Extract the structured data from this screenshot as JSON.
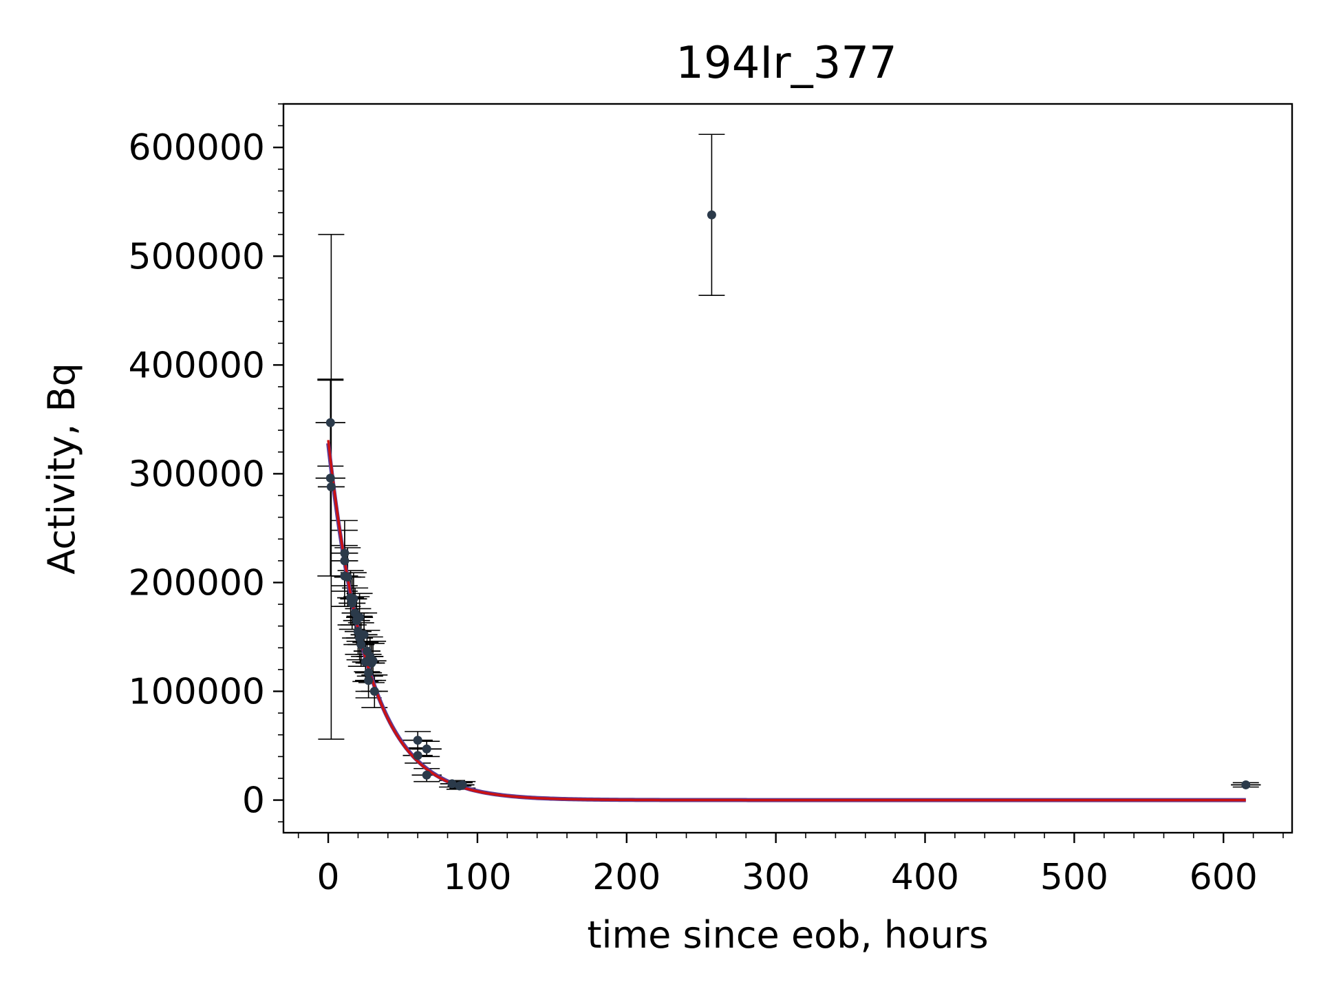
{
  "chart_data": {
    "type": "scatter",
    "title": "194Ir_377",
    "xlabel": "time since eob, hours",
    "ylabel": "Activity, Bq",
    "xlim": [
      -30,
      646
    ],
    "ylim": [
      -30000,
      640000
    ],
    "xticks": [
      0,
      100,
      200,
      300,
      400,
      500,
      600
    ],
    "xtick_labels": [
      "0",
      "100",
      "200",
      "300",
      "400",
      "500",
      "600"
    ],
    "yticks": [
      0,
      100000,
      200000,
      300000,
      400000,
      500000,
      600000
    ],
    "ytick_labels": [
      "0",
      "100000",
      "200000",
      "300000",
      "400000",
      "500000",
      "600000"
    ],
    "grid": false,
    "legend": "none",
    "colors": {
      "points": "#2b3a4a",
      "errorbars": "#000000",
      "fit_primary": "#cc1111",
      "fit_secondary": "#5a3d9a"
    },
    "points": [
      {
        "x": 1.5,
        "y": 347000,
        "xerr": 10,
        "yerr": 40000
      },
      {
        "x": 1.5,
        "y": 296000,
        "xerr": 10,
        "yerr": 90000
      },
      {
        "x": 2,
        "y": 288000,
        "xerr": 9,
        "yerr": 232000
      },
      {
        "x": 11,
        "y": 227000,
        "xerr": 9,
        "yerr": 30000
      },
      {
        "x": 11,
        "y": 220000,
        "xerr": 9,
        "yerr": 28000
      },
      {
        "x": 11,
        "y": 206000,
        "xerr": 9,
        "yerr": 28000
      },
      {
        "x": 13,
        "y": 205000,
        "xerr": 9,
        "yerr": 27000
      },
      {
        "x": 15,
        "y": 186000,
        "xerr": 9,
        "yerr": 25000
      },
      {
        "x": 16,
        "y": 181000,
        "xerr": 9,
        "yerr": 24000
      },
      {
        "x": 17,
        "y": 185000,
        "xerr": 9,
        "yerr": 24000
      },
      {
        "x": 18,
        "y": 172000,
        "xerr": 9,
        "yerr": 23000
      },
      {
        "x": 19,
        "y": 165000,
        "xerr": 9,
        "yerr": 22000
      },
      {
        "x": 20,
        "y": 155000,
        "xerr": 9,
        "yerr": 21000
      },
      {
        "x": 21,
        "y": 149000,
        "xerr": 9,
        "yerr": 20000
      },
      {
        "x": 21,
        "y": 168000,
        "xerr": 9,
        "yerr": 22000
      },
      {
        "x": 22,
        "y": 143000,
        "xerr": 9,
        "yerr": 20000
      },
      {
        "x": 24,
        "y": 152000,
        "xerr": 9,
        "yerr": 20000
      },
      {
        "x": 25,
        "y": 127000,
        "xerr": 9,
        "yerr": 18000
      },
      {
        "x": 26,
        "y": 137000,
        "xerr": 9,
        "yerr": 19000
      },
      {
        "x": 27,
        "y": 117000,
        "xerr": 9,
        "yerr": 17000
      },
      {
        "x": 27,
        "y": 110000,
        "xerr": 9,
        "yerr": 16000
      },
      {
        "x": 28,
        "y": 132000,
        "xerr": 9,
        "yerr": 18000
      },
      {
        "x": 29,
        "y": 126000,
        "xerr": 9,
        "yerr": 18000
      },
      {
        "x": 30,
        "y": 128000,
        "xerr": 9,
        "yerr": 18000
      },
      {
        "x": 31,
        "y": 100000,
        "xerr": 9,
        "yerr": 15000
      },
      {
        "x": 60,
        "y": 55000,
        "xerr": 10,
        "yerr": 8000
      },
      {
        "x": 60,
        "y": 41000,
        "xerr": 10,
        "yerr": 7000
      },
      {
        "x": 66,
        "y": 47000,
        "xerr": 10,
        "yerr": 7000
      },
      {
        "x": 66,
        "y": 23000,
        "xerr": 10,
        "yerr": 6000
      },
      {
        "x": 83,
        "y": 15000,
        "xerr": 8,
        "yerr": 3000
      },
      {
        "x": 88,
        "y": 13000,
        "xerr": 8,
        "yerr": 3000
      },
      {
        "x": 90,
        "y": 14000,
        "xerr": 8,
        "yerr": 3000
      },
      {
        "x": 257,
        "y": 538000,
        "xerr": 0,
        "yerr": 74000
      },
      {
        "x": 615,
        "y": 14000,
        "xerr": 10,
        "yerr": 2000
      }
    ],
    "fit_lines": [
      {
        "A0": 328000,
        "lambda": 0.0368,
        "x_start": 0,
        "x_end": 615
      },
      {
        "A0": 331000,
        "lambda": 0.0372,
        "x_start": 0,
        "x_end": 615
      }
    ]
  }
}
